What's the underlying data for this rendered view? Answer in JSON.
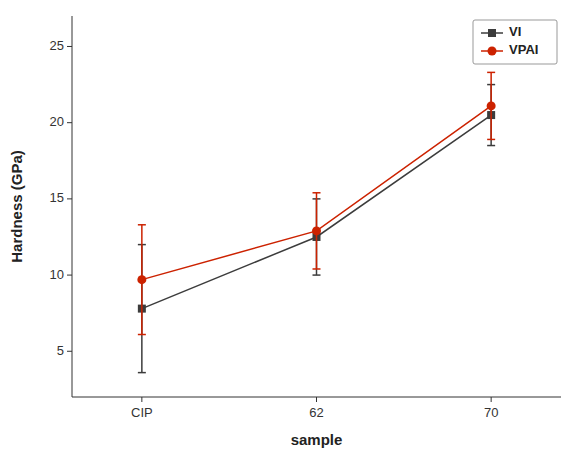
{
  "chart_data": {
    "type": "line",
    "categories": [
      "CIP",
      "62",
      "70"
    ],
    "series": [
      {
        "name": "VI",
        "color": "#3c3c3c",
        "marker": "square",
        "values": [
          7.8,
          12.5,
          20.5
        ],
        "errors": [
          4.2,
          2.5,
          2.0
        ]
      },
      {
        "name": "VPAI",
        "color": "#cc2200",
        "marker": "circle",
        "values": [
          9.7,
          12.9,
          21.1
        ],
        "errors": [
          3.6,
          2.5,
          2.2
        ]
      }
    ],
    "xlabel": "sample",
    "ylabel": "Hardness (GPa)",
    "ylim": [
      2.0,
      27.0
    ],
    "yticks": [
      5,
      10,
      15,
      20,
      25
    ],
    "legend": "upper right",
    "grid": false
  }
}
